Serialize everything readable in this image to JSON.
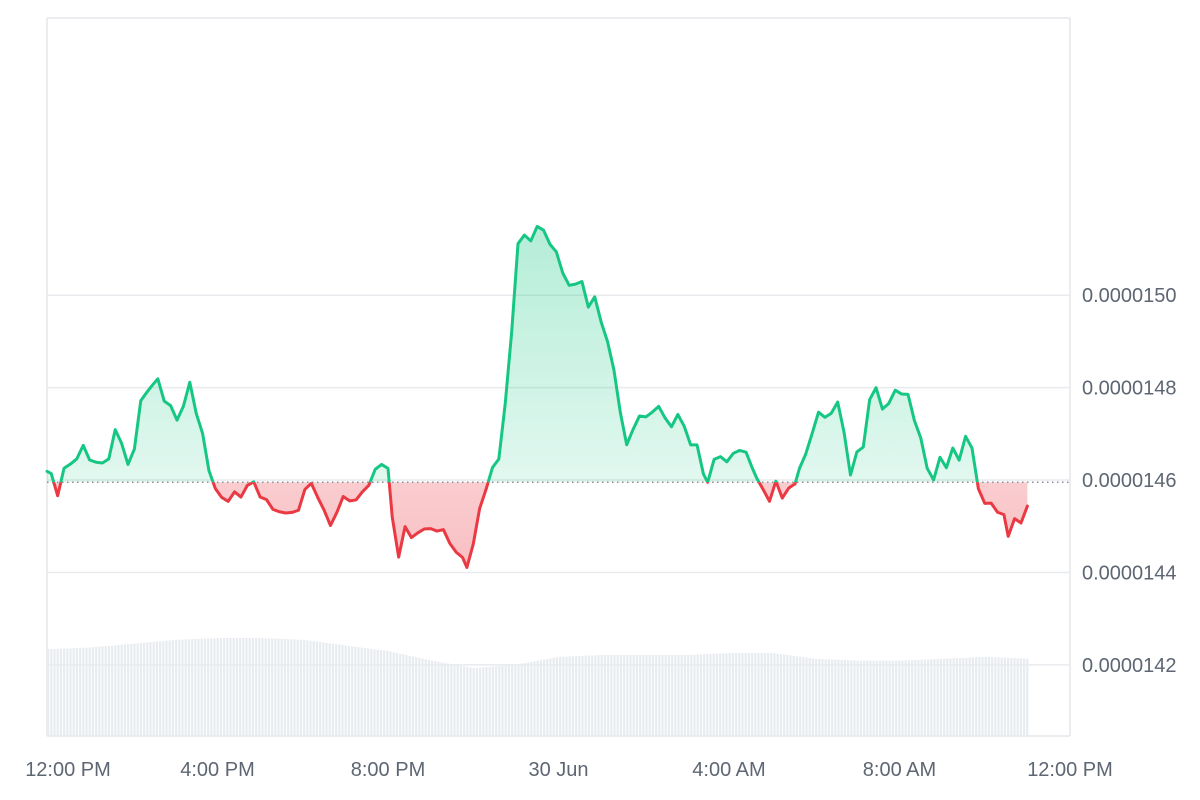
{
  "chart_data": {
    "type": "area",
    "title": "",
    "xlabel": "",
    "ylabel": "",
    "baseline": 1.45951e-05,
    "ylim": [
      1.4046e-05,
      1.56e-05
    ],
    "xlim": [
      12.0,
      36.0
    ],
    "y_ticks": [
      {
        "value": 1.42e-05,
        "label": "0.0000142"
      },
      {
        "value": 1.44e-05,
        "label": "0.0000144"
      },
      {
        "value": 1.46e-05,
        "label": "0.0000146"
      },
      {
        "value": 1.48e-05,
        "label": "0.0000148"
      },
      {
        "value": 1.5e-05,
        "label": "0.0000150"
      }
    ],
    "x_ticks": [
      {
        "value": 12.0,
        "label": "12:00 PM"
      },
      {
        "value": 16.0,
        "label": "4:00 PM"
      },
      {
        "value": 20.0,
        "label": "8:00 PM"
      },
      {
        "value": 24.0,
        "label": "30 Jun"
      },
      {
        "value": 28.0,
        "label": "4:00 AM"
      },
      {
        "value": 32.0,
        "label": "8:00 AM"
      },
      {
        "value": 36.0,
        "label": "12:00 PM"
      }
    ],
    "colors": {
      "up": "#16c784",
      "down": "#ea3943",
      "up_fill": "#16c784",
      "down_fill": "#ea3943",
      "volume": "#e8ebef",
      "grid": "#e8eaed",
      "baseline": "#8a8f98",
      "tick_text": "#5e6673"
    },
    "series": [
      {
        "values": [
          [
            12.0,
            1.46189e-05
          ],
          [
            12.1,
            1.46139e-05
          ],
          [
            12.25,
            1.4566e-05
          ],
          [
            12.4,
            1.46254e-05
          ],
          [
            12.55,
            1.46346e-05
          ],
          [
            12.7,
            1.4646e-05
          ],
          [
            12.85,
            1.4675e-05
          ],
          [
            13.0,
            1.46434e-05
          ],
          [
            13.15,
            1.46386e-05
          ],
          [
            13.3,
            1.46369e-05
          ],
          [
            13.45,
            1.46459e-05
          ],
          [
            13.6,
            1.4709e-05
          ],
          [
            13.75,
            1.46796e-05
          ],
          [
            13.9,
            1.46337e-05
          ],
          [
            14.05,
            1.4667e-05
          ],
          [
            14.2,
            1.47716e-05
          ],
          [
            14.3,
            1.47847e-05
          ],
          [
            14.45,
            1.48028e-05
          ],
          [
            14.6,
            1.48191e-05
          ],
          [
            14.75,
            1.47709e-05
          ],
          [
            14.9,
            1.4761e-05
          ],
          [
            15.05,
            1.47297e-05
          ],
          [
            15.2,
            1.47597e-05
          ],
          [
            15.35,
            1.48117e-05
          ],
          [
            15.5,
            1.47446e-05
          ],
          [
            15.65,
            1.47009e-05
          ],
          [
            15.8,
            1.46201e-05
          ],
          [
            15.95,
            1.45814e-05
          ],
          [
            16.1,
            1.45623e-05
          ],
          [
            16.25,
            1.45538e-05
          ],
          [
            16.4,
            1.45745e-05
          ],
          [
            16.55,
            1.45631e-05
          ],
          [
            16.7,
            1.45884e-05
          ],
          [
            16.85,
            1.45962e-05
          ],
          [
            17.0,
            1.45633e-05
          ],
          [
            17.15,
            1.45576e-05
          ],
          [
            17.3,
            1.45366e-05
          ],
          [
            17.45,
            1.45314e-05
          ],
          [
            17.6,
            1.45286e-05
          ],
          [
            17.75,
            1.45299e-05
          ],
          [
            17.9,
            1.45346e-05
          ],
          [
            18.05,
            1.45797e-05
          ],
          [
            18.2,
            1.45929e-05
          ],
          [
            18.35,
            1.45627e-05
          ],
          [
            18.5,
            1.4535e-05
          ],
          [
            18.65,
            1.45016e-05
          ],
          [
            18.8,
            1.45298e-05
          ],
          [
            18.95,
            1.45644e-05
          ],
          [
            19.1,
            1.45549e-05
          ],
          [
            19.25,
            1.45569e-05
          ],
          [
            19.4,
            1.45744e-05
          ],
          [
            19.55,
            1.45885e-05
          ],
          [
            19.7,
            1.46232e-05
          ],
          [
            19.85,
            1.46337e-05
          ],
          [
            20.0,
            1.46252e-05
          ],
          [
            20.1,
            1.45197e-05
          ],
          [
            20.25,
            1.44332e-05
          ],
          [
            20.4,
            1.44991e-05
          ],
          [
            20.55,
            1.44755e-05
          ],
          [
            20.7,
            1.44858e-05
          ],
          [
            20.85,
            1.4494e-05
          ],
          [
            21.0,
            1.44948e-05
          ],
          [
            21.15,
            1.44896e-05
          ],
          [
            21.3,
            1.44927e-05
          ],
          [
            21.45,
            1.44628e-05
          ],
          [
            21.6,
            1.44437e-05
          ],
          [
            21.75,
            1.44323e-05
          ],
          [
            21.85,
            1.44108e-05
          ],
          [
            22.0,
            1.44613e-05
          ],
          [
            22.15,
            1.45383e-05
          ],
          [
            22.3,
            1.45797e-05
          ],
          [
            22.45,
            1.46268e-05
          ],
          [
            22.6,
            1.46455e-05
          ],
          [
            22.75,
            1.47653e-05
          ],
          [
            22.9,
            1.49187e-05
          ],
          [
            23.05,
            1.51115e-05
          ],
          [
            23.2,
            1.51302e-05
          ],
          [
            23.35,
            1.51175e-05
          ],
          [
            23.5,
            1.51488e-05
          ],
          [
            23.65,
            1.51407e-05
          ],
          [
            23.8,
            1.51103e-05
          ],
          [
            23.95,
            1.50936e-05
          ],
          [
            24.1,
            1.50481e-05
          ],
          [
            24.25,
            1.50214e-05
          ],
          [
            24.4,
            1.50241e-05
          ],
          [
            24.55,
            1.50296e-05
          ],
          [
            24.7,
            1.49742e-05
          ],
          [
            24.85,
            1.49965e-05
          ],
          [
            25.0,
            1.49422e-05
          ],
          [
            25.15,
            1.48997e-05
          ],
          [
            25.3,
            1.48384e-05
          ],
          [
            25.45,
            1.47465e-05
          ],
          [
            25.6,
            1.46763e-05
          ],
          [
            25.75,
            1.47097e-05
          ],
          [
            25.9,
            1.47387e-05
          ],
          [
            26.05,
            1.47367e-05
          ],
          [
            26.2,
            1.47469e-05
          ],
          [
            26.35,
            1.47595e-05
          ],
          [
            26.5,
            1.47344e-05
          ],
          [
            26.65,
            1.47153e-05
          ],
          [
            26.8,
            1.47419e-05
          ],
          [
            26.95,
            1.47163e-05
          ],
          [
            27.1,
            1.46762e-05
          ],
          [
            27.25,
            1.4676e-05
          ],
          [
            27.4,
            1.46131e-05
          ],
          [
            27.5,
            1.45951e-05
          ],
          [
            27.65,
            1.46446e-05
          ],
          [
            27.8,
            1.46507e-05
          ],
          [
            27.95,
            1.46394e-05
          ],
          [
            28.1,
            1.46577e-05
          ],
          [
            28.25,
            1.46641e-05
          ],
          [
            28.4,
            1.46602e-05
          ],
          [
            28.55,
            1.46252e-05
          ],
          [
            28.65,
            1.46041e-05
          ],
          [
            28.8,
            1.45799e-05
          ],
          [
            28.95,
            1.4554e-05
          ],
          [
            29.1,
            1.45976e-05
          ],
          [
            29.25,
            1.45609e-05
          ],
          [
            29.4,
            1.45824e-05
          ],
          [
            29.55,
            1.45918e-05
          ],
          [
            29.65,
            1.46244e-05
          ],
          [
            29.8,
            1.46564e-05
          ],
          [
            29.95,
            1.47007e-05
          ],
          [
            30.1,
            1.47468e-05
          ],
          [
            30.25,
            1.47357e-05
          ],
          [
            30.4,
            1.47445e-05
          ],
          [
            30.55,
            1.47689e-05
          ],
          [
            30.7,
            1.47028e-05
          ],
          [
            30.85,
            1.46108e-05
          ],
          [
            31.0,
            1.46609e-05
          ],
          [
            31.15,
            1.46713e-05
          ],
          [
            31.3,
            1.47742e-05
          ],
          [
            31.45,
            1.47998e-05
          ],
          [
            31.6,
            1.47536e-05
          ],
          [
            31.75,
            1.4766e-05
          ],
          [
            31.9,
            1.47945e-05
          ],
          [
            32.05,
            1.47861e-05
          ],
          [
            32.2,
            1.47854e-05
          ],
          [
            32.35,
            1.47285e-05
          ],
          [
            32.5,
            1.46906e-05
          ],
          [
            32.65,
            1.46254e-05
          ],
          [
            32.8,
            1.46003e-05
          ],
          [
            32.95,
            1.46493e-05
          ],
          [
            33.1,
            1.46266e-05
          ],
          [
            33.25,
            1.46693e-05
          ],
          [
            33.4,
            1.4643e-05
          ],
          [
            33.55,
            1.46946e-05
          ],
          [
            33.7,
            1.46695e-05
          ],
          [
            33.85,
            1.45814e-05
          ],
          [
            34.0,
            1.45496e-05
          ],
          [
            34.15,
            1.45501e-05
          ],
          [
            34.3,
            1.45302e-05
          ],
          [
            34.45,
            1.45251e-05
          ],
          [
            34.55,
            1.44781e-05
          ],
          [
            34.7,
            1.45164e-05
          ],
          [
            34.85,
            1.4507e-05
          ],
          [
            35.0,
            1.45436e-05
          ]
        ]
      }
    ],
    "volume": [
      [
        12.0,
        0.46
      ],
      [
        13.0,
        0.47
      ],
      [
        14.0,
        0.49
      ],
      [
        15.0,
        0.51
      ],
      [
        16.0,
        0.52
      ],
      [
        17.0,
        0.52
      ],
      [
        18.0,
        0.51
      ],
      [
        19.0,
        0.48
      ],
      [
        20.0,
        0.45
      ],
      [
        21.0,
        0.4
      ],
      [
        22.0,
        0.36
      ],
      [
        23.0,
        0.38
      ],
      [
        24.0,
        0.42
      ],
      [
        25.0,
        0.43
      ],
      [
        26.0,
        0.43
      ],
      [
        27.0,
        0.43
      ],
      [
        28.0,
        0.44
      ],
      [
        29.0,
        0.44
      ],
      [
        30.0,
        0.41
      ],
      [
        31.0,
        0.4
      ],
      [
        32.0,
        0.4
      ],
      [
        33.0,
        0.41
      ],
      [
        34.0,
        0.42
      ],
      [
        35.0,
        0.41
      ]
    ],
    "grid": true,
    "legend": "none"
  }
}
